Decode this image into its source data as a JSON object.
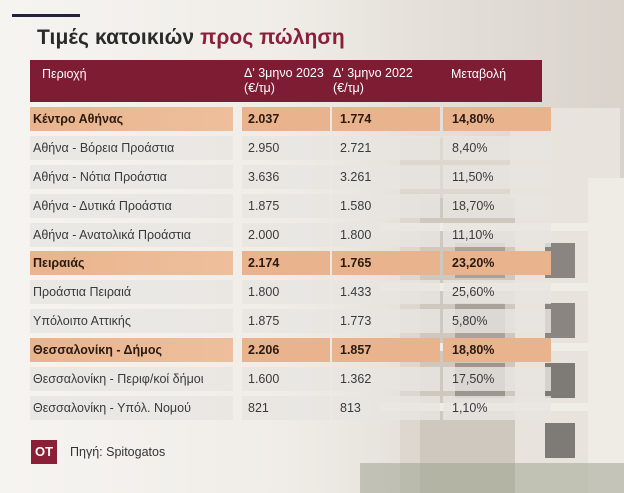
{
  "title": {
    "main": "Τιμές κατοικιών",
    "accent": "προς πώληση"
  },
  "header": {
    "region": "Περιοχή",
    "col1": [
      "Δ' 3μηνο 2023",
      "(€/τμ)"
    ],
    "col2": [
      "Δ' 3μηνο 2022",
      "(€/τμ)"
    ],
    "change": "Μεταβολή"
  },
  "rows": [
    {
      "region": "Κέντρο Αθήνας",
      "q4_2023": "2.037",
      "q4_2022": "1.774",
      "change": "14,80%",
      "bold": true
    },
    {
      "region": "Αθήνα - Βόρεια Προάστια",
      "q4_2023": "2.950",
      "q4_2022": "2.721",
      "change": "8,40%"
    },
    {
      "region": "Αθήνα - Νότια Προάστια",
      "q4_2023": "3.636",
      "q4_2022": "3.261",
      "change": "11,50%"
    },
    {
      "region": "Αθήνα - Δυτικά Προάστια",
      "q4_2023": "1.875",
      "q4_2022": "1.580",
      "change": "18,70%"
    },
    {
      "region": "Αθήνα - Ανατολικά Προάστια",
      "q4_2023": "2.000",
      "q4_2022": "1.800",
      "change": "11,10%"
    },
    {
      "region": "Πειραιάς",
      "q4_2023": "2.174",
      "q4_2022": "1.765",
      "change": "23,20%",
      "bold": true
    },
    {
      "region": "Προάστια Πειραιά",
      "q4_2023": "1.800",
      "q4_2022": "1.433",
      "change": "25,60%"
    },
    {
      "region": "Υπόλοιπο Αττικής",
      "q4_2023": "1.875",
      "q4_2022": "1.773",
      "change": "5,80%"
    },
    {
      "region": "Θεσσαλονίκη - Δήμος",
      "q4_2023": "2.206",
      "q4_2022": "1.857",
      "change": "18,80%",
      "bold": true
    },
    {
      "region": "Θεσσαλονίκη - Περιφ/κοί δήμοι",
      "q4_2023": "1.600",
      "q4_2022": "1.362",
      "change": "17,50%"
    },
    {
      "region": "Θεσσαλονίκη - Υπόλ. Νομού",
      "q4_2023": "821",
      "q4_2022": "813",
      "change": "1,10%"
    }
  ],
  "logo": "ΟΤ",
  "source": "Πηγή: Spitogatos",
  "colors": {
    "accent": "#8b1f37",
    "header_bg": "#7d1c33",
    "highlight": "#e9b48d"
  }
}
